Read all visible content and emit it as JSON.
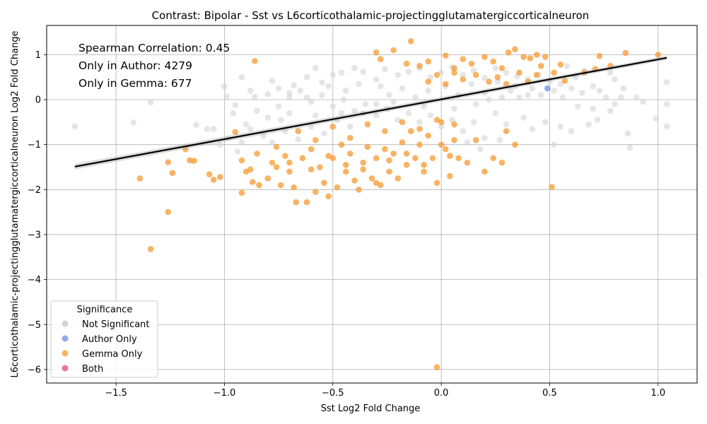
{
  "chart_data": {
    "type": "scatter",
    "title": "Contrast: Bipolar - Sst vs L6corticothalamic-projectingglutamatergiccorticalneuron",
    "xlabel": "Sst Log2 Fold Change",
    "ylabel": "L6corticothalamic-projectingglutamatergiccorticalneuron Log2 Fold Change",
    "xlim": [
      -1.82,
      1.18
    ],
    "ylim": [
      -6.3,
      1.65
    ],
    "xticks": [
      -1.5,
      -1.0,
      -0.5,
      0.0,
      0.5,
      1.0
    ],
    "yticks": [
      -6,
      -5,
      -4,
      -3,
      -2,
      -1,
      0,
      1
    ],
    "grid": true,
    "annotations": [
      "Spearman Correlation: 0.45",
      "Only in Author: 4279",
      "Only in Gemma: 677"
    ],
    "regression_line": {
      "x": [
        -1.69,
        1.04
      ],
      "y": [
        -1.49,
        0.93
      ]
    },
    "legend": {
      "title": "Significance",
      "placement": "lower-left",
      "entries": [
        "Not Significant",
        "Author Only",
        "Gemma Only",
        "Both"
      ]
    },
    "colors": {
      "Not Significant": "#d3d3d3",
      "Author Only": "#6f8fe0",
      "Gemma Only": "#f59a30",
      "Both": "#dc5068"
    },
    "series": [
      {
        "name": "Not Significant",
        "points": [
          [
            -1.69,
            -0.59
          ],
          [
            -1.42,
            -0.51
          ],
          [
            -1.34,
            -0.06
          ],
          [
            -1.13,
            -0.56
          ],
          [
            -1.05,
            -0.65
          ],
          [
            -1.08,
            -0.65
          ],
          [
            -0.99,
            0.07
          ],
          [
            -1.0,
            0.29
          ],
          [
            -0.95,
            -0.12
          ],
          [
            -0.92,
            0.5
          ],
          [
            -0.88,
            0.2
          ],
          [
            -0.86,
            0.06
          ],
          [
            -0.8,
            0.12
          ],
          [
            -0.78,
            0.42
          ],
          [
            -0.75,
            0.25
          ],
          [
            -0.7,
            0.15
          ],
          [
            -0.68,
            0.32
          ],
          [
            -0.62,
            0.5
          ],
          [
            -0.58,
            0.7
          ],
          [
            -0.55,
            0.38
          ],
          [
            -0.5,
            0.55
          ],
          [
            -0.46,
            0.6
          ],
          [
            -0.4,
            0.7
          ],
          [
            -0.36,
            0.62
          ],
          [
            -0.3,
            0.45
          ],
          [
            -0.26,
            0.68
          ],
          [
            -0.2,
            0.55
          ],
          [
            -0.15,
            0.62
          ],
          [
            -0.1,
            0.7
          ],
          [
            -0.05,
            0.5
          ],
          [
            0.0,
            0.6
          ],
          [
            0.05,
            0.72
          ],
          [
            0.1,
            0.55
          ],
          [
            0.15,
            0.65
          ],
          [
            0.2,
            0.48
          ],
          [
            0.25,
            0.7
          ],
          [
            0.3,
            0.6
          ],
          [
            0.35,
            0.52
          ],
          [
            0.4,
            0.45
          ],
          [
            0.45,
            0.55
          ],
          [
            0.5,
            0.4
          ],
          [
            0.55,
            0.35
          ],
          [
            0.6,
            0.25
          ],
          [
            0.62,
            0.5
          ],
          [
            0.65,
            0.15
          ],
          [
            0.7,
            0.3
          ],
          [
            0.73,
            0.2
          ],
          [
            0.78,
            0.6
          ],
          [
            0.8,
            0.45
          ],
          [
            0.83,
            0.05
          ],
          [
            0.86,
            -0.75
          ],
          [
            0.87,
            -1.07
          ],
          [
            0.9,
            0.05
          ],
          [
            0.93,
            -0.05
          ],
          [
            0.99,
            -0.42
          ],
          [
            1.04,
            -0.59
          ],
          [
            1.04,
            0.39
          ],
          [
            1.04,
            -0.1
          ],
          [
            0.78,
            -0.25
          ],
          [
            0.72,
            -0.45
          ],
          [
            0.68,
            -0.55
          ],
          [
            0.6,
            -0.7
          ],
          [
            0.55,
            -0.6
          ],
          [
            0.52,
            -1.0
          ],
          [
            0.48,
            -0.5
          ],
          [
            0.42,
            -0.65
          ],
          [
            0.38,
            -0.4
          ],
          [
            0.3,
            -0.55
          ],
          [
            0.25,
            -0.3
          ],
          [
            0.2,
            -0.85
          ],
          [
            0.15,
            -0.5
          ],
          [
            0.1,
            -0.7
          ],
          [
            0.05,
            -0.45
          ],
          [
            0.0,
            -0.6
          ],
          [
            -0.05,
            -0.35
          ],
          [
            -0.1,
            -0.5
          ],
          [
            -0.15,
            -0.3
          ],
          [
            -0.2,
            -0.45
          ],
          [
            -0.25,
            -0.2
          ],
          [
            -0.3,
            -0.35
          ],
          [
            -0.35,
            -0.1
          ],
          [
            -0.4,
            -0.25
          ],
          [
            -0.45,
            0.0
          ],
          [
            -0.5,
            -0.15
          ],
          [
            -0.55,
            0.1
          ],
          [
            -0.6,
            -0.05
          ],
          [
            -0.65,
            0.2
          ],
          [
            -0.7,
            -0.3
          ],
          [
            -0.75,
            -0.15
          ],
          [
            -0.8,
            -0.4
          ],
          [
            -0.85,
            -0.25
          ],
          [
            -0.9,
            -0.55
          ],
          [
            -0.94,
            -1.15
          ],
          [
            -0.92,
            -0.95
          ],
          [
            -0.88,
            -0.65
          ],
          [
            -0.82,
            -0.8
          ],
          [
            -0.78,
            -0.95
          ],
          [
            -0.72,
            -0.7
          ],
          [
            -0.66,
            -0.88
          ],
          [
            -0.6,
            -0.6
          ],
          [
            -0.54,
            -0.75
          ],
          [
            -0.48,
            -0.45
          ],
          [
            -0.42,
            -0.6
          ],
          [
            -0.36,
            -0.3
          ],
          [
            -0.3,
            -0.1
          ],
          [
            -0.24,
            0.1
          ],
          [
            -0.18,
            0.25
          ],
          [
            -0.12,
            0.05
          ],
          [
            -0.06,
            0.2
          ],
          [
            0.02,
            0.3
          ],
          [
            0.08,
            0.1
          ],
          [
            0.14,
            0.35
          ],
          [
            0.2,
            0.15
          ],
          [
            0.26,
            0.4
          ],
          [
            0.32,
            0.2
          ],
          [
            0.36,
            0.05
          ],
          [
            0.42,
            0.25
          ],
          [
            0.46,
            0.1
          ],
          [
            0.52,
            0.2
          ],
          [
            0.56,
            0.05
          ],
          [
            0.58,
            0.75
          ],
          [
            0.63,
            -0.15
          ],
          [
            0.66,
            0.65
          ],
          [
            0.7,
            -0.2
          ],
          [
            0.76,
            0.05
          ],
          [
            0.8,
            -0.1
          ],
          [
            0.84,
            0.25
          ],
          [
            -0.98,
            -0.85
          ],
          [
            -1.02,
            -1.0
          ],
          [
            -0.96,
            -0.3
          ],
          [
            0.12,
            -0.95
          ],
          [
            0.18,
            -1.1
          ],
          [
            0.27,
            -0.9
          ],
          [
            -0.38,
            0.35
          ],
          [
            -0.28,
            0.3
          ],
          [
            -0.22,
            -0.05
          ],
          [
            -0.08,
            -0.15
          ],
          [
            0.06,
            -0.2
          ],
          [
            0.16,
            -0.1
          ],
          [
            0.22,
            0.0
          ],
          [
            0.28,
            0.05
          ],
          [
            0.34,
            0.3
          ],
          [
            0.4,
            0.1
          ],
          [
            -0.44,
            0.2
          ],
          [
            -0.52,
            0.3
          ],
          [
            -0.62,
            0.05
          ],
          [
            -0.7,
            0.05
          ],
          [
            -0.74,
            -0.45
          ],
          [
            -0.58,
            -0.35
          ],
          [
            -0.46,
            -0.3
          ]
        ]
      },
      {
        "name": "Author Only",
        "points": [
          [
            0.49,
            0.25
          ]
        ]
      },
      {
        "name": "Gemma Only",
        "points": [
          [
            -1.39,
            -1.75
          ],
          [
            -1.34,
            -3.32
          ],
          [
            -1.26,
            -1.39
          ],
          [
            -1.26,
            -2.5
          ],
          [
            -1.24,
            -1.63
          ],
          [
            -1.18,
            -1.1
          ],
          [
            -1.16,
            -1.35
          ],
          [
            -1.14,
            -1.36
          ],
          [
            -1.07,
            -1.66
          ],
          [
            -1.05,
            -1.78
          ],
          [
            -1.02,
            -1.72
          ],
          [
            -0.95,
            -0.72
          ],
          [
            -0.92,
            -1.35
          ],
          [
            -0.92,
            -2.07
          ],
          [
            -0.9,
            -1.6
          ],
          [
            -0.88,
            -1.55
          ],
          [
            -0.87,
            -1.83
          ],
          [
            -0.86,
            0.86
          ],
          [
            -0.85,
            -1.2
          ],
          [
            -0.84,
            -1.9
          ],
          [
            -0.8,
            -1.75
          ],
          [
            -0.78,
            -1.4
          ],
          [
            -0.76,
            -1.5
          ],
          [
            -0.74,
            -1.9
          ],
          [
            -0.72,
            -1.25
          ],
          [
            -0.7,
            -1.6
          ],
          [
            -0.68,
            -1.95
          ],
          [
            -0.67,
            -2.28
          ],
          [
            -0.64,
            -1.3
          ],
          [
            -0.62,
            -2.28
          ],
          [
            -0.6,
            -1.1
          ],
          [
            -0.58,
            -2.05
          ],
          [
            -0.56,
            -1.5
          ],
          [
            -0.54,
            -1.85
          ],
          [
            -0.52,
            -2.15
          ],
          [
            -0.5,
            -1.3
          ],
          [
            -0.48,
            -1.95
          ],
          [
            -0.46,
            -1.0
          ],
          [
            -0.44,
            -1.6
          ],
          [
            -0.42,
            -1.2
          ],
          [
            -0.4,
            -1.8
          ],
          [
            -0.38,
            -2.0
          ],
          [
            -0.36,
            -1.4
          ],
          [
            -0.34,
            -1.05
          ],
          [
            -0.32,
            -1.75
          ],
          [
            -0.3,
            -1.3
          ],
          [
            -0.28,
            -1.9
          ],
          [
            -0.26,
            -1.1
          ],
          [
            -0.24,
            -1.6
          ],
          [
            -0.22,
            -1.2
          ],
          [
            -0.2,
            -1.75
          ],
          [
            -0.18,
            -0.95
          ],
          [
            -0.16,
            -1.45
          ],
          [
            -0.14,
            -0.7
          ],
          [
            -0.12,
            -1.3
          ],
          [
            -0.1,
            -1.0
          ],
          [
            -0.08,
            -1.6
          ],
          [
            -0.06,
            -0.8
          ],
          [
            -0.04,
            -1.3
          ],
          [
            -0.02,
            -1.85
          ],
          [
            -0.02,
            -5.95
          ],
          [
            0.0,
            -0.5
          ],
          [
            0.02,
            -1.1
          ],
          [
            0.04,
            -1.7
          ],
          [
            0.06,
            -0.9
          ],
          [
            0.08,
            -1.3
          ],
          [
            0.12,
            -1.4
          ],
          [
            0.16,
            -0.9
          ],
          [
            0.2,
            -1.6
          ],
          [
            0.24,
            -1.3
          ],
          [
            0.28,
            -1.4
          ],
          [
            0.3,
            -0.7
          ],
          [
            0.34,
            -1.0
          ],
          [
            0.51,
            -1.94
          ],
          [
            -0.14,
            1.3
          ],
          [
            -0.3,
            1.05
          ],
          [
            -0.22,
            1.1
          ],
          [
            -0.28,
            0.9
          ],
          [
            -0.16,
            0.8
          ],
          [
            -0.1,
            0.75
          ],
          [
            -0.06,
            0.85
          ],
          [
            0.02,
            0.98
          ],
          [
            0.06,
            0.7
          ],
          [
            0.1,
            0.9
          ],
          [
            0.14,
            0.8
          ],
          [
            0.2,
            0.95
          ],
          [
            0.24,
            0.85
          ],
          [
            0.28,
            0.7
          ],
          [
            0.31,
            1.05
          ],
          [
            0.34,
            1.12
          ],
          [
            0.38,
            0.95
          ],
          [
            0.41,
            0.92
          ],
          [
            0.44,
            1.0
          ],
          [
            0.46,
            0.75
          ],
          [
            0.48,
            0.95
          ],
          [
            0.52,
            0.6
          ],
          [
            0.55,
            0.78
          ],
          [
            0.57,
            0.42
          ],
          [
            0.66,
            0.6
          ],
          [
            0.71,
            0.68
          ],
          [
            0.73,
            0.97
          ],
          [
            0.78,
            0.75
          ],
          [
            0.85,
            1.04
          ],
          [
            1.0,
            1.0
          ],
          [
            -0.66,
            -0.7
          ],
          [
            -0.58,
            -0.9
          ],
          [
            -0.5,
            -0.6
          ],
          [
            -0.42,
            -0.85
          ],
          [
            -0.34,
            -0.55
          ],
          [
            -0.26,
            -0.7
          ],
          [
            -0.18,
            -0.5
          ],
          [
            -0.1,
            -0.65
          ],
          [
            -0.02,
            -0.45
          ],
          [
            0.06,
            -0.55
          ],
          [
            0.1,
            0.45
          ],
          [
            0.16,
            0.55
          ],
          [
            0.22,
            0.4
          ],
          [
            0.26,
            0.5
          ],
          [
            0.3,
            0.35
          ],
          [
            0.36,
            0.6
          ],
          [
            0.4,
            0.4
          ],
          [
            0.44,
            0.55
          ],
          [
            -0.06,
            0.4
          ],
          [
            -0.02,
            0.55
          ],
          [
            0.02,
            0.35
          ],
          [
            0.06,
            0.6
          ],
          [
            -0.76,
            -1.05
          ],
          [
            -0.7,
            -1.4
          ],
          [
            -0.6,
            -1.55
          ],
          [
            -0.52,
            -1.25
          ],
          [
            -0.44,
            -1.45
          ],
          [
            -0.36,
            -1.55
          ],
          [
            -0.3,
            -1.85
          ],
          [
            -0.24,
            -1.35
          ],
          [
            -0.16,
            -1.2
          ],
          [
            -0.08,
            -1.45
          ],
          [
            0.0,
            -1.0
          ],
          [
            0.04,
            -1.25
          ]
        ]
      },
      {
        "name": "Both",
        "points": []
      }
    ]
  }
}
